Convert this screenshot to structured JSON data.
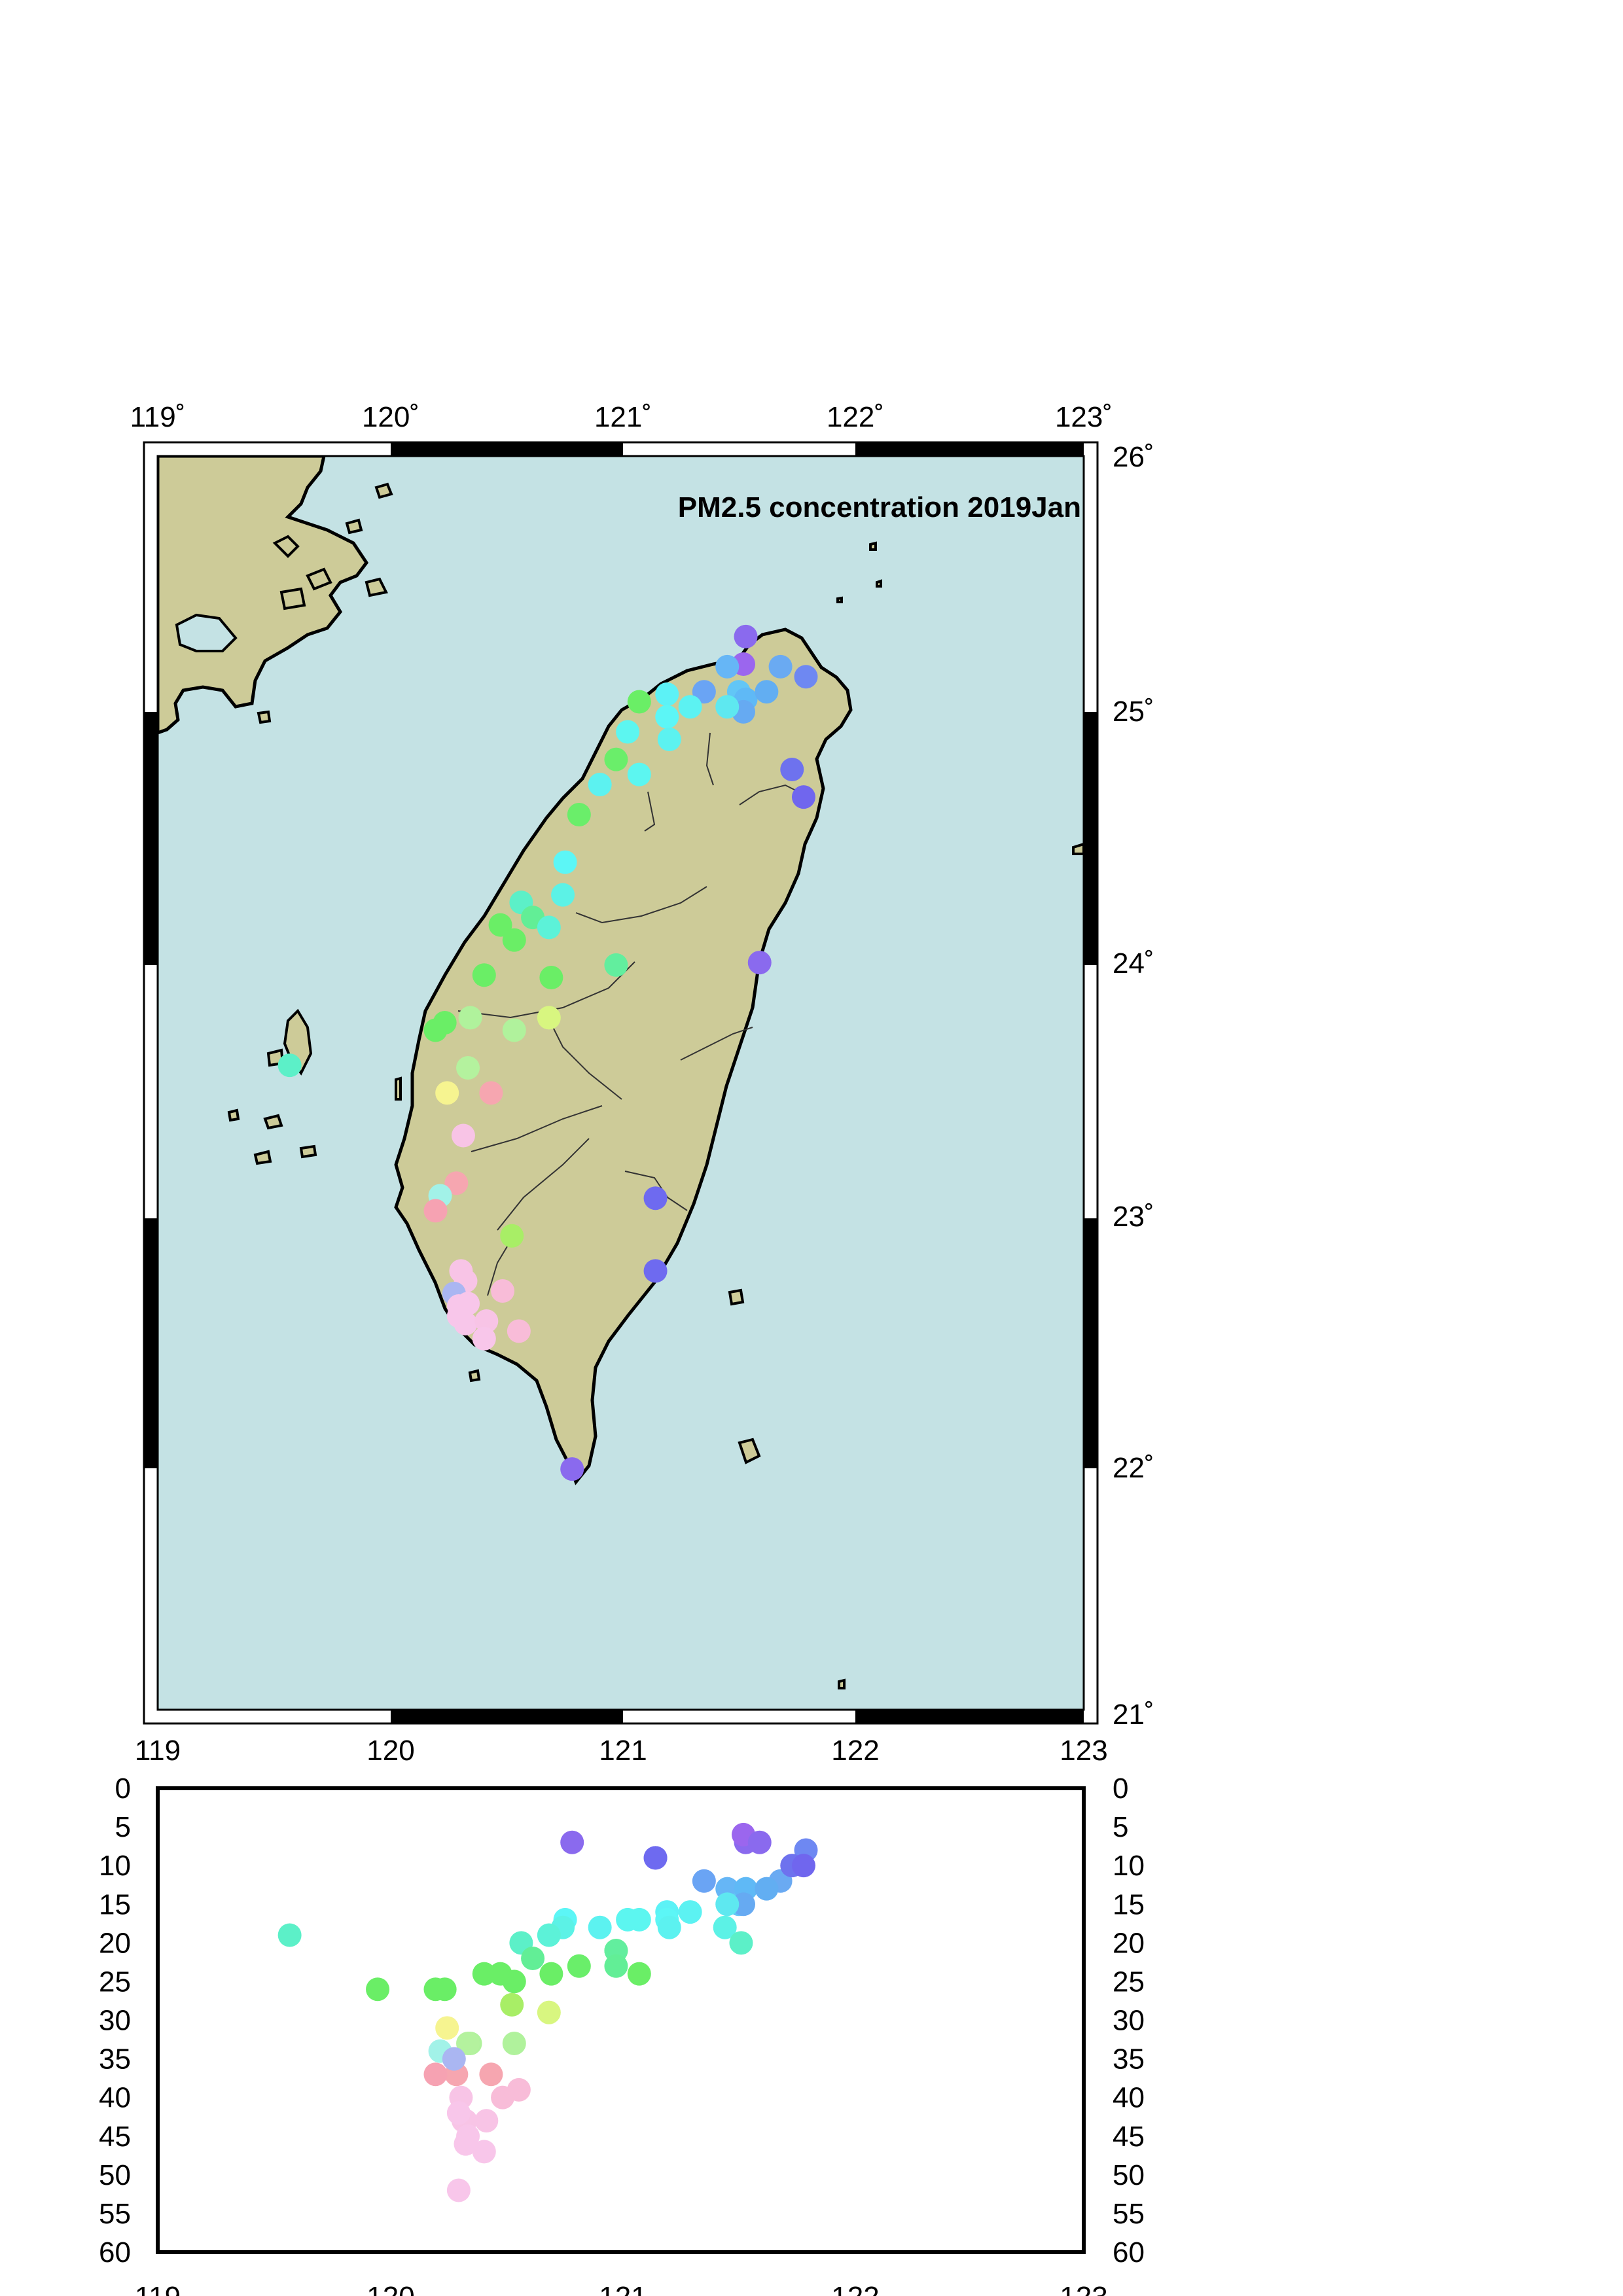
{
  "map": {
    "title": "PM2.5 concentration 2019Jan",
    "lon_range": [
      119,
      123
    ],
    "lat_range": [
      21,
      26
    ],
    "lon_tick_labels": [
      "119˚",
      "120˚",
      "121˚",
      "122˚",
      "123˚"
    ],
    "lat_tick_labels": [
      "21˚",
      "22˚",
      "23˚",
      "24˚",
      "25˚",
      "26˚"
    ],
    "ocean_color": "#c4e2e4",
    "land_color": "#cdcb98",
    "frame": "checkered black-white"
  },
  "chart_data": {
    "type": "scatter",
    "xlim": [
      119,
      123
    ],
    "ylim": [
      0,
      60
    ],
    "y_inverted": true,
    "x_tick_labels": [
      "119",
      "120",
      "121",
      "122",
      "123"
    ],
    "y_tick_labels": [
      "0",
      "5",
      "10",
      "15",
      "20",
      "25",
      "30",
      "35",
      "40",
      "45",
      "50",
      "55",
      "60"
    ],
    "points": [
      {
        "lon": 121.54,
        "lat": 25.28,
        "pm": 7,
        "color": "#8a6aee"
      },
      {
        "lon": 121.53,
        "lat": 25.17,
        "pm": 6,
        "color": "#9b66ee"
      },
      {
        "lon": 121.8,
        "lat": 25.12,
        "pm": 8,
        "color": "#6e88f2"
      },
      {
        "lon": 121.69,
        "lat": 25.16,
        "pm": 12,
        "color": "#6aaaf2"
      },
      {
        "lon": 121.46,
        "lat": 25.16,
        "pm": 13,
        "color": "#66b6f6"
      },
      {
        "lon": 121.36,
        "lat": 25.06,
        "pm": 12,
        "color": "#6aa4f4"
      },
      {
        "lon": 121.51,
        "lat": 25.06,
        "pm": 15,
        "color": "#62c6f6"
      },
      {
        "lon": 121.54,
        "lat": 25.03,
        "pm": 13,
        "color": "#5fb9f6"
      },
      {
        "lon": 121.63,
        "lat": 25.06,
        "pm": 13,
        "color": "#62aef2"
      },
      {
        "lon": 121.53,
        "lat": 24.98,
        "pm": 15,
        "color": "#66aaf2"
      },
      {
        "lon": 121.46,
        "lat": 25.0,
        "pm": 15,
        "color": "#5ee8f0"
      },
      {
        "lon": 121.3,
        "lat": 25.0,
        "pm": 16,
        "color": "#5cf2f2"
      },
      {
        "lon": 121.2,
        "lat": 25.05,
        "pm": 16,
        "color": "#5cf2f6"
      },
      {
        "lon": 121.2,
        "lat": 24.96,
        "pm": 17,
        "color": "#5cf6f6"
      },
      {
        "lon": 121.21,
        "lat": 24.87,
        "pm": 18,
        "color": "#5cf2f0"
      },
      {
        "lon": 121.03,
        "lat": 24.9,
        "pm": 17,
        "color": "#5cf6f0"
      },
      {
        "lon": 121.08,
        "lat": 25.02,
        "pm": 24,
        "color": "#6aee66"
      },
      {
        "lon": 120.98,
        "lat": 24.79,
        "pm": 21,
        "color": "#6aee6a"
      },
      {
        "lon": 121.08,
        "lat": 24.73,
        "pm": 17,
        "color": "#5cf6f0"
      },
      {
        "lon": 120.91,
        "lat": 24.69,
        "pm": 18,
        "color": "#5cf2f0"
      },
      {
        "lon": 120.82,
        "lat": 24.57,
        "pm": 23,
        "color": "#6aee6a"
      },
      {
        "lon": 120.76,
        "lat": 24.38,
        "pm": 17,
        "color": "#5cf6f6"
      },
      {
        "lon": 120.75,
        "lat": 24.25,
        "pm": 18,
        "color": "#5cf2e6"
      },
      {
        "lon": 120.57,
        "lat": 24.22,
        "pm": 20,
        "color": "#5cf0c8"
      },
      {
        "lon": 120.62,
        "lat": 24.16,
        "pm": 22,
        "color": "#62ee96"
      },
      {
        "lon": 120.69,
        "lat": 24.12,
        "pm": 19,
        "color": "#5cf2d8"
      },
      {
        "lon": 120.48,
        "lat": 24.13,
        "pm": 24,
        "color": "#6aee66"
      },
      {
        "lon": 120.54,
        "lat": 24.07,
        "pm": 25,
        "color": "#6aee66"
      },
      {
        "lon": 120.41,
        "lat": 23.93,
        "pm": 24,
        "color": "#6aee66"
      },
      {
        "lon": 120.7,
        "lat": 23.92,
        "pm": 24,
        "color": "#6aee66"
      },
      {
        "lon": 120.98,
        "lat": 23.97,
        "pm": 21,
        "color": "#62ee9e"
      },
      {
        "lon": 120.24,
        "lat": 23.74,
        "pm": 26,
        "color": "#6aee66"
      },
      {
        "lon": 120.2,
        "lat": 23.71,
        "pm": 26,
        "color": "#6aee66"
      },
      {
        "lon": 120.35,
        "lat": 23.76,
        "pm": 33,
        "color": "#b0f29c"
      },
      {
        "lon": 120.54,
        "lat": 23.71,
        "pm": 33,
        "color": "#b0f29c"
      },
      {
        "lon": 120.69,
        "lat": 23.76,
        "pm": 29,
        "color": "#d8f680"
      },
      {
        "lon": 120.34,
        "lat": 23.56,
        "pm": 33,
        "color": "#b4f29e"
      },
      {
        "lon": 120.25,
        "lat": 23.46,
        "pm": 31,
        "color": "#f6f490"
      },
      {
        "lon": 120.44,
        "lat": 23.46,
        "pm": 37,
        "color": "#f6a6b0"
      },
      {
        "lon": 120.32,
        "lat": 23.29,
        "pm": 43,
        "color": "#f8c4e6"
      },
      {
        "lon": 120.29,
        "lat": 23.1,
        "pm": 37,
        "color": "#f6a6b0"
      },
      {
        "lon": 120.22,
        "lat": 23.05,
        "pm": 34,
        "color": "#a2f2e8"
      },
      {
        "lon": 120.2,
        "lat": 22.99,
        "pm": 37,
        "color": "#f6a2b2"
      },
      {
        "lon": 120.53,
        "lat": 22.89,
        "pm": 28,
        "color": "#a8ee66"
      },
      {
        "lon": 120.31,
        "lat": 22.75,
        "pm": 40,
        "color": "#f8c4e6"
      },
      {
        "lon": 120.33,
        "lat": 22.71,
        "pm": 43,
        "color": "#f8c4e6"
      },
      {
        "lon": 120.49,
        "lat": 22.67,
        "pm": 40,
        "color": "#f8bcd8"
      },
      {
        "lon": 120.28,
        "lat": 22.66,
        "pm": 35,
        "color": "#aab6f2"
      },
      {
        "lon": 120.3,
        "lat": 22.61,
        "pm": 42,
        "color": "#f8c6ea"
      },
      {
        "lon": 120.34,
        "lat": 22.62,
        "pm": 45,
        "color": "#f8c6ea"
      },
      {
        "lon": 120.3,
        "lat": 22.57,
        "pm": 52,
        "color": "#f8c6ea"
      },
      {
        "lon": 120.33,
        "lat": 22.54,
        "pm": 46,
        "color": "#f8c6ea"
      },
      {
        "lon": 120.42,
        "lat": 22.55,
        "pm": 43,
        "color": "#f8c4e6"
      },
      {
        "lon": 120.56,
        "lat": 22.51,
        "pm": 39,
        "color": "#f8bcd8"
      },
      {
        "lon": 120.41,
        "lat": 22.48,
        "pm": 47,
        "color": "#f8c6ea"
      },
      {
        "lon": 119.57,
        "lat": 23.57,
        "pm": 19,
        "color": "#5cf0c8"
      },
      {
        "lon": 121.74,
        "lat": 24.75,
        "pm": 10,
        "color": "#6e72ee"
      },
      {
        "lon": 121.79,
        "lat": 24.64,
        "pm": 10,
        "color": "#7066ee"
      },
      {
        "lon": 121.6,
        "lat": 23.98,
        "pm": 7,
        "color": "#8a6aee"
      },
      {
        "lon": 121.15,
        "lat": 23.04,
        "pm": 9,
        "color": "#6e6af0"
      },
      {
        "lon": 121.15,
        "lat": 22.75,
        "pm": 9,
        "color": "#6e6af0"
      },
      {
        "lon": 120.79,
        "lat": 21.96,
        "pm": 7,
        "color": "#8a6aee"
      },
      {
        "lon": 119.95,
        "lat": 26.0,
        "pm": 26,
        "color": "#6aee66",
        "depth_only": true
      },
      {
        "lon": 121.45,
        "lat": 24.98,
        "pm": 18,
        "color": "#5cf2e6",
        "depth_only": true
      },
      {
        "lon": 121.52,
        "lat": 25.0,
        "pm": 20,
        "color": "#5cf0c8",
        "depth_only": true
      },
      {
        "lon": 120.98,
        "lat": 24.8,
        "pm": 23,
        "color": "#62ee96",
        "depth_only": true
      }
    ]
  }
}
